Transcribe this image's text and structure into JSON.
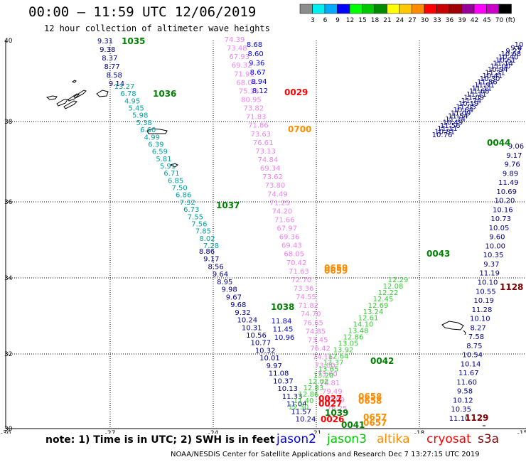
{
  "header": {
    "title": "00:00 — 11:59 UTC 12/06/2019",
    "subtitle": "12 hour collection of altimeter wave heights"
  },
  "colorbar": {
    "colors": [
      "#8c8c8c",
      "#00f0f0",
      "#00aaff",
      "#0000ff",
      "#00ff00",
      "#00c800",
      "#008c00",
      "#ffff00",
      "#ffc800",
      "#ff8c00",
      "#ff0000",
      "#c80000",
      "#a00000",
      "#960096",
      "#ff00ff",
      "#c800c8",
      "#000000"
    ],
    "labels": [
      "3",
      "6",
      "9",
      "12",
      "15",
      "18",
      "21",
      "24",
      "27",
      "30",
      "33",
      "36",
      "39",
      "42",
      "45",
      "70",
      "(ft)"
    ]
  },
  "axes": {
    "lat_labels": [
      "40",
      "38",
      "36",
      "34",
      "32",
      "30"
    ],
    "lon_labels": [
      "-30",
      "-27",
      "-24",
      "-21",
      "-18",
      "-15"
    ]
  },
  "passes": [
    {
      "time": "1035",
      "color": "#008000"
    },
    {
      "time": "1036",
      "color": "#008000"
    },
    {
      "time": "1037",
      "color": "#008000"
    },
    {
      "time": "1038",
      "color": "#008000"
    },
    {
      "time": "1039",
      "color": "#008000"
    },
    {
      "time": "0029",
      "color": "#ff0000"
    },
    {
      "time": "0700",
      "color": "#ff8c00"
    },
    {
      "time": "0659",
      "color": "#ff8c00"
    },
    {
      "time": "0659",
      "color": "#ff8c00"
    },
    {
      "time": "0043",
      "color": "#008000"
    },
    {
      "time": "0044",
      "color": "#008000"
    },
    {
      "time": "0042",
      "color": "#008000"
    },
    {
      "time": "0041",
      "color": "#008000"
    },
    {
      "time": "1128",
      "color": "#800000"
    },
    {
      "time": "1129",
      "color": "#800000"
    },
    {
      "time": "0027",
      "color": "#ff0000"
    },
    {
      "time": "0027",
      "color": "#ff0000"
    },
    {
      "time": "0026",
      "color": "#ff0000"
    },
    {
      "time": "0658",
      "color": "#ff8c00"
    },
    {
      "time": "0658",
      "color": "#ff8c00"
    },
    {
      "time": "0657",
      "color": "#ff8c00"
    },
    {
      "time": "0657",
      "color": "#ff8c00"
    }
  ],
  "tracks": {
    "jason2_left": {
      "color": "#00008b",
      "values": [
        "9.31",
        "9.38",
        "8.37",
        "8.77",
        "8.58",
        "9.14"
      ]
    },
    "jason3_left": {
      "color": "#00a0a0",
      "values": [
        "13.27",
        "6.78",
        "4.95",
        "5.45",
        "5.98",
        "5.38",
        "6.60",
        "4.99",
        "6.39",
        "6.59",
        "5.81",
        "5.91",
        "6.71",
        "6.85",
        "7.50",
        "6.86",
        "7.32",
        "6.73",
        "7.55",
        "7.56",
        "7.85",
        "8.02",
        "7.28"
      ]
    },
    "jason2_diag": {
      "color": "#00008b",
      "values": [
        "8.86",
        "9.17",
        "8.56",
        "9.64",
        "8.95",
        "9.98",
        "9.67",
        "9.68",
        "9.32",
        "10.24",
        "10.31",
        "10.56",
        "10.77",
        "10.32",
        "10.01",
        "9.97",
        "11.08",
        "10.37",
        "10.13",
        "11.33",
        "11.04",
        "11.57",
        "10.24"
      ]
    },
    "altika": {
      "color": "#ee82ee",
      "values": [
        "74.39",
        "73.48",
        "67.93",
        "69.32",
        "71.91",
        "68.04",
        "75.16",
        "80.95",
        "73.82",
        "71.83",
        "71.86",
        "73.63",
        "76.61",
        "73.13",
        "74.84",
        "69.34",
        "73.62",
        "73.80",
        "74.49",
        "71.25",
        "74.20",
        "71.66",
        "67.97",
        "69.36",
        "69.43",
        "68.05",
        "70.42",
        "71.63",
        "72.70",
        "73.36",
        "74.55",
        "71.82",
        "74.70",
        "76.65",
        "74.85",
        "73.45",
        "76.42",
        "74.16",
        "73.00",
        "73.60",
        "76.81",
        "79.49",
        "77.09",
        "76.25"
      ]
    },
    "cryosat_diag": {
      "color": "#0000ff",
      "values": [
        "8.68",
        "8.60",
        "9.36",
        "8.67",
        "8.94",
        "8.12"
      ]
    },
    "jason3_mid": {
      "color": "#32cd32",
      "values": [
        "12.29",
        "12.08",
        "12.22",
        "12.45",
        "12.69",
        "13.24",
        "12.61",
        "14.10",
        "13.48",
        "12.86",
        "13.05",
        "13.92",
        "12.64",
        "13.37",
        "13.65",
        "13.20",
        "12.02",
        "12.83",
        "12.86",
        "11.40",
        "12.30"
      ]
    },
    "jason2_mid": {
      "color": "#0000cd",
      "values": [
        "11.84",
        "11.45",
        "10.96"
      ]
    },
    "cryosat_right": {
      "color": "#00008b",
      "values": [
        "10.76",
        "10.81",
        "11.11",
        "11.56",
        "10.49",
        "11.74",
        "11.54",
        "11.09",
        "10.64",
        "11.05",
        "10.19",
        "11.74",
        "11.09",
        "11.21",
        "11.68",
        "11.11",
        "11.91",
        "11.86",
        "10.30",
        "10.41",
        "11.21",
        "10.94",
        "11.00",
        "11.14",
        "10.61",
        "10.40",
        "10.68",
        "9.27",
        "9.6",
        "10"
      ]
    },
    "sentinel_right": {
      "color": "#00008b",
      "values": [
        "9.06",
        "9.17",
        "9.76",
        "9.89",
        "11.49",
        "10.69",
        "10.20",
        "10.16",
        "10.73",
        "10.05",
        "9.60",
        "10.00",
        "10.35",
        "9.37",
        "11.19",
        "10.10",
        "10.55",
        "10.19",
        "11.28",
        "10.10",
        "8.27",
        "7.58",
        "8.75",
        "10.54",
        "10.14",
        "11.67",
        "11.60",
        "9.58",
        "10.12",
        "10.35",
        "11.10"
      ]
    }
  },
  "legend": {
    "note": "note: 1) Time is in UTC; 2) SWH is in feet",
    "sats": [
      {
        "name": "jason2",
        "color": "#0000ff"
      },
      {
        "name": "jason3",
        "color": "#00c800"
      },
      {
        "name": "altika",
        "color": "#ff8c00"
      },
      {
        "name": "cryosat",
        "color": "#ff0000"
      },
      {
        "name": "s3a",
        "color": "#800000"
      }
    ]
  },
  "footer": "NOAA/NESDIS Center for Satellite Applications and Research   Dec  7 13:27:15 UTC 2019"
}
